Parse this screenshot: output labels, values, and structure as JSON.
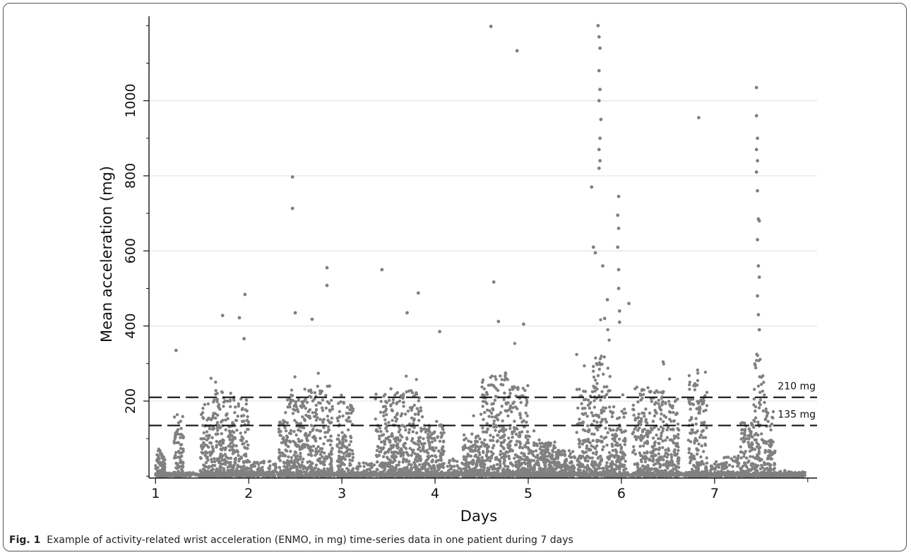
{
  "caption": {
    "label": "Fig. 1",
    "text": "Example of activity-related wrist acceleration (ENMO, in mg) time-series data in one patient during 7 days"
  },
  "chart_data": {
    "type": "scatter",
    "title": "",
    "xlabel": "Days",
    "ylabel": "Mean acceleration (mg)",
    "xlim": [
      0.93,
      8.1
    ],
    "ylim": [
      -5,
      1225
    ],
    "x_ticks": [
      1,
      2,
      3,
      4,
      5,
      6,
      7
    ],
    "y_ticks": [
      200,
      400,
      600,
      800,
      1000
    ],
    "grid": "horizontal",
    "point_color": "#808080",
    "reference_lines": [
      {
        "y": 210,
        "label": "210 mg",
        "style": "dashed"
      },
      {
        "y": 135,
        "label": "135 mg",
        "style": "dashed"
      }
    ],
    "outlier_points": [
      [
        1.22,
        335
      ],
      [
        1.72,
        428
      ],
      [
        1.9,
        422
      ],
      [
        1.96,
        484
      ],
      [
        1.95,
        366
      ],
      [
        2.47,
        797
      ],
      [
        2.47,
        713
      ],
      [
        2.5,
        435
      ],
      [
        2.68,
        418
      ],
      [
        2.84,
        555
      ],
      [
        2.84,
        508
      ],
      [
        3.43,
        550
      ],
      [
        3.7,
        435
      ],
      [
        3.82,
        488
      ],
      [
        4.05,
        385
      ],
      [
        4.6,
        1198
      ],
      [
        4.63,
        517
      ],
      [
        4.68,
        412
      ],
      [
        4.88,
        1133
      ],
      [
        4.95,
        405
      ],
      [
        5.68,
        770
      ],
      [
        5.75,
        1200
      ],
      [
        5.76,
        1170
      ],
      [
        5.77,
        1140
      ],
      [
        5.76,
        1080
      ],
      [
        5.77,
        1030
      ],
      [
        5.76,
        1000
      ],
      [
        5.78,
        950
      ],
      [
        5.77,
        900
      ],
      [
        5.76,
        870
      ],
      [
        5.77,
        840
      ],
      [
        5.76,
        820
      ],
      [
        5.7,
        610
      ],
      [
        5.72,
        595
      ],
      [
        5.8,
        560
      ],
      [
        5.85,
        470
      ],
      [
        5.82,
        420
      ],
      [
        5.97,
        745
      ],
      [
        5.96,
        695
      ],
      [
        5.97,
        660
      ],
      [
        5.96,
        610
      ],
      [
        5.97,
        550
      ],
      [
        5.97,
        500
      ],
      [
        5.98,
        440
      ],
      [
        5.98,
        410
      ],
      [
        6.08,
        460
      ],
      [
        6.83,
        955
      ],
      [
        7.45,
        1035
      ],
      [
        7.45,
        960
      ],
      [
        7.46,
        900
      ],
      [
        7.45,
        870
      ],
      [
        7.46,
        840
      ],
      [
        7.45,
        810
      ],
      [
        7.46,
        760
      ],
      [
        7.47,
        685
      ],
      [
        7.48,
        680
      ],
      [
        7.46,
        630
      ],
      [
        7.47,
        560
      ],
      [
        7.48,
        530
      ],
      [
        7.46,
        480
      ],
      [
        7.47,
        430
      ],
      [
        7.48,
        390
      ]
    ],
    "activity_bursts": [
      {
        "start": 1.0,
        "end": 1.1,
        "level": 65
      },
      {
        "start": 1.2,
        "end": 1.3,
        "level": 150
      },
      {
        "start": 1.48,
        "end": 1.58,
        "level": 170
      },
      {
        "start": 1.58,
        "end": 1.85,
        "level": 200
      },
      {
        "start": 1.85,
        "end": 2.0,
        "level": 180
      },
      {
        "start": 2.0,
        "end": 2.3,
        "level": 35
      },
      {
        "start": 2.32,
        "end": 2.42,
        "level": 130
      },
      {
        "start": 2.42,
        "end": 2.62,
        "level": 190
      },
      {
        "start": 2.62,
        "end": 2.9,
        "level": 210
      },
      {
        "start": 2.95,
        "end": 3.12,
        "level": 180
      },
      {
        "start": 3.15,
        "end": 3.35,
        "level": 35
      },
      {
        "start": 3.36,
        "end": 3.55,
        "level": 190
      },
      {
        "start": 3.55,
        "end": 3.85,
        "level": 200
      },
      {
        "start": 3.85,
        "end": 4.1,
        "level": 120
      },
      {
        "start": 4.12,
        "end": 4.3,
        "level": 45
      },
      {
        "start": 4.3,
        "end": 4.5,
        "level": 100
      },
      {
        "start": 4.5,
        "end": 4.8,
        "level": 240
      },
      {
        "start": 4.8,
        "end": 5.0,
        "level": 210
      },
      {
        "start": 5.0,
        "end": 5.3,
        "level": 80
      },
      {
        "start": 5.3,
        "end": 5.5,
        "level": 60
      },
      {
        "start": 5.52,
        "end": 5.68,
        "level": 200
      },
      {
        "start": 5.68,
        "end": 5.88,
        "level": 280
      },
      {
        "start": 5.88,
        "end": 6.05,
        "level": 170
      },
      {
        "start": 6.12,
        "end": 6.3,
        "level": 210
      },
      {
        "start": 6.3,
        "end": 6.5,
        "level": 200
      },
      {
        "start": 6.5,
        "end": 6.62,
        "level": 180
      },
      {
        "start": 6.72,
        "end": 6.92,
        "level": 250
      },
      {
        "start": 6.95,
        "end": 7.1,
        "level": 40
      },
      {
        "start": 7.1,
        "end": 7.28,
        "level": 50
      },
      {
        "start": 7.28,
        "end": 7.42,
        "level": 130
      },
      {
        "start": 7.42,
        "end": 7.55,
        "level": 280
      },
      {
        "start": 7.55,
        "end": 7.65,
        "level": 160
      },
      {
        "start": 7.65,
        "end": 7.97,
        "level": 10
      }
    ]
  }
}
